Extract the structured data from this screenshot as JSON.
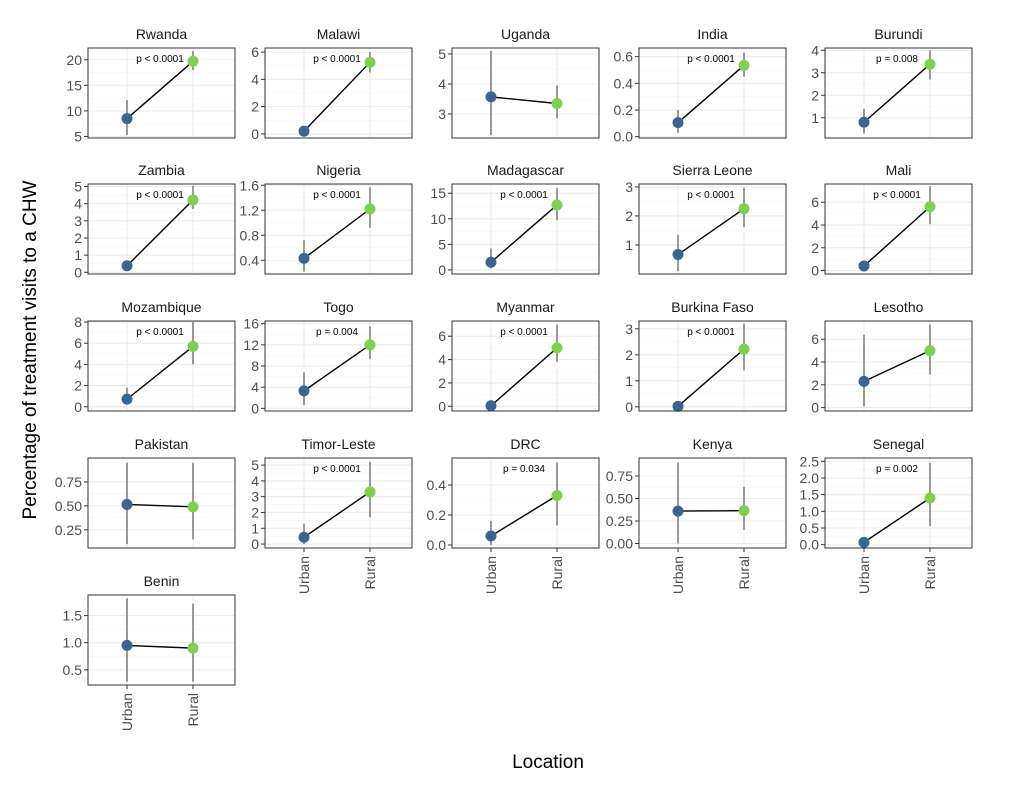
{
  "figure": {
    "ylabel": "Percentage of treatment visits to a CHW",
    "xlabel": "Location",
    "colors": {
      "urban": "#3a6593",
      "rural": "#7ed04f",
      "line": "#000000",
      "errorbar": "#999999",
      "grid": "#ebebeb",
      "border": "#333333"
    }
  },
  "chart_data": {
    "type": "line",
    "categories": [
      "Urban",
      "Rural"
    ],
    "facets": [
      {
        "country": "Rwanda",
        "urban": 8.5,
        "rural": 19.7,
        "urban_ci": [
          5.3,
          12.1
        ],
        "rural_ci": [
          18.0,
          21.7
        ],
        "p": "p < 0.0001",
        "ylim": [
          4.7,
          22.3
        ],
        "yticks": [
          5,
          10,
          15,
          20
        ]
      },
      {
        "country": "Malawi",
        "urban": 0.2,
        "rural": 5.25,
        "urban_ci": [
          0.0,
          0.4
        ],
        "rural_ci": [
          4.5,
          6.0
        ],
        "p": "p < 0.0001",
        "ylim": [
          -0.3,
          6.3
        ],
        "yticks": [
          0,
          2,
          4,
          6
        ]
      },
      {
        "country": "Uganda",
        "urban": 3.57,
        "rural": 3.35,
        "urban_ci": [
          2.3,
          5.1
        ],
        "rural_ci": [
          2.85,
          3.95
        ],
        "p": "",
        "ylim": [
          2.2,
          5.2
        ],
        "yticks": [
          3,
          4,
          5
        ]
      },
      {
        "country": "India",
        "urban": 0.105,
        "rural": 0.535,
        "urban_ci": [
          0.03,
          0.2
        ],
        "rural_ci": [
          0.45,
          0.63
        ],
        "p": "p < 0.0001",
        "ylim": [
          -0.01,
          0.665
        ],
        "yticks": [
          0.0,
          0.2,
          0.4,
          0.6
        ]
      },
      {
        "country": "Burundi",
        "urban": 0.8,
        "rural": 3.38,
        "urban_ci": [
          0.3,
          1.4
        ],
        "rural_ci": [
          2.7,
          4.0
        ],
        "p": "p = 0.008",
        "ylim": [
          0.1,
          4.1
        ],
        "yticks": [
          1,
          2,
          3,
          4
        ]
      },
      {
        "country": "Zambia",
        "urban": 0.38,
        "rural": 4.22,
        "urban_ci": [
          0.15,
          0.6
        ],
        "rural_ci": [
          3.7,
          5.05
        ],
        "p": "p < 0.0001",
        "ylim": [
          -0.1,
          5.15
        ],
        "yticks": [
          0,
          1,
          2,
          3,
          4,
          5
        ]
      },
      {
        "country": "Nigeria",
        "urban": 0.43,
        "rural": 1.22,
        "urban_ci": [
          0.22,
          0.72
        ],
        "rural_ci": [
          0.92,
          1.57
        ],
        "p": "p < 0.0001",
        "ylim": [
          0.18,
          1.62
        ],
        "yticks": [
          0.4,
          0.8,
          1.2,
          1.6
        ]
      },
      {
        "country": "Madagascar",
        "urban": 1.5,
        "rural": 12.7,
        "urban_ci": [
          0.3,
          4.2
        ],
        "rural_ci": [
          9.7,
          16.0
        ],
        "p": "p < 0.0001",
        "ylim": [
          -0.8,
          16.8
        ],
        "yticks": [
          0,
          5,
          10,
          15
        ]
      },
      {
        "country": "Sierra Leone",
        "urban": 0.67,
        "rural": 2.25,
        "urban_ci": [
          0.1,
          1.35
        ],
        "rural_ci": [
          1.62,
          2.98
        ],
        "p": "p < 0.0001",
        "ylim": [
          0.0,
          3.1
        ],
        "yticks": [
          1,
          2,
          3
        ]
      },
      {
        "country": "Mali",
        "urban": 0.4,
        "rural": 5.6,
        "urban_ci": [
          0.0,
          0.9
        ],
        "rural_ci": [
          4.1,
          7.4
        ],
        "p": "p < 0.0001",
        "ylim": [
          -0.3,
          7.6
        ],
        "yticks": [
          0,
          2,
          4,
          6
        ]
      },
      {
        "country": "Mozambique",
        "urban": 0.72,
        "rural": 5.7,
        "urban_ci": [
          0.2,
          1.8
        ],
        "rural_ci": [
          4.0,
          8.0
        ],
        "p": "p < 0.0001",
        "ylim": [
          -0.4,
          8.1
        ],
        "yticks": [
          0,
          2,
          4,
          6,
          8
        ]
      },
      {
        "country": "Togo",
        "urban": 3.3,
        "rural": 12.0,
        "urban_ci": [
          0.6,
          6.8
        ],
        "rural_ci": [
          9.3,
          15.5
        ],
        "p": "p = 0.004",
        "ylim": [
          -0.5,
          16.5
        ],
        "yticks": [
          0,
          4,
          8,
          12,
          16
        ]
      },
      {
        "country": "Myanmar",
        "urban": 0.05,
        "rural": 5.0,
        "urban_ci": [
          0.0,
          0.2
        ],
        "rural_ci": [
          3.8,
          7.0
        ],
        "p": "p < 0.0001",
        "ylim": [
          -0.4,
          7.3
        ],
        "yticks": [
          0,
          2,
          4,
          6
        ]
      },
      {
        "country": "Burkina Faso",
        "urban": 0.02,
        "rural": 2.22,
        "urban_ci": [
          0.0,
          0.1
        ],
        "rural_ci": [
          1.4,
          3.2
        ],
        "p": "p < 0.0001",
        "ylim": [
          -0.16,
          3.3
        ],
        "yticks": [
          0,
          1,
          2,
          3
        ]
      },
      {
        "country": "Lesotho",
        "urban": 2.3,
        "rural": 5.0,
        "urban_ci": [
          0.1,
          6.4
        ],
        "rural_ci": [
          2.9,
          7.3
        ],
        "p": "",
        "ylim": [
          -0.3,
          7.6
        ],
        "yticks": [
          0,
          2,
          4,
          6
        ]
      },
      {
        "country": "Pakistan",
        "urban": 0.515,
        "rural": 0.49,
        "urban_ci": [
          0.1,
          0.95
        ],
        "rural_ci": [
          0.15,
          0.95
        ],
        "p": "",
        "ylim": [
          0.06,
          1.0
        ],
        "yticks": [
          0.25,
          0.5,
          0.75
        ]
      },
      {
        "country": "Timor-Leste",
        "urban": 0.43,
        "rural": 3.3,
        "urban_ci": [
          0.0,
          1.3
        ],
        "rural_ci": [
          1.7,
          5.2
        ],
        "p": "p < 0.0001",
        "ylim": [
          -0.25,
          5.45
        ],
        "yticks": [
          0,
          1,
          2,
          3,
          4,
          5
        ]
      },
      {
        "country": "DRC",
        "urban": 0.06,
        "rural": 0.33,
        "urban_ci": [
          0.0,
          0.16
        ],
        "rural_ci": [
          0.13,
          0.55
        ],
        "p": "p = 0.034",
        "ylim": [
          -0.02,
          0.58
        ],
        "yticks": [
          0.0,
          0.2,
          0.4
        ]
      },
      {
        "country": "Kenya",
        "urban": 0.36,
        "rural": 0.365,
        "urban_ci": [
          0.0,
          0.9
        ],
        "rural_ci": [
          0.15,
          0.63
        ],
        "p": "",
        "ylim": [
          -0.05,
          0.95
        ],
        "yticks": [
          0.0,
          0.25,
          0.5,
          0.75
        ]
      },
      {
        "country": "Senegal",
        "urban": 0.07,
        "rural": 1.4,
        "urban_ci": [
          0.0,
          0.12
        ],
        "rural_ci": [
          0.55,
          2.45
        ],
        "p": "p = 0.002",
        "ylim": [
          -0.1,
          2.6
        ],
        "yticks": [
          0.0,
          0.5,
          1.0,
          1.5,
          2.0,
          2.5
        ]
      },
      {
        "country": "Benin",
        "urban": 0.95,
        "rural": 0.9,
        "urban_ci": [
          0.28,
          1.82
        ],
        "rural_ci": [
          0.28,
          1.72
        ],
        "p": "",
        "ylim": [
          0.22,
          1.88
        ],
        "yticks": [
          0.5,
          1.0,
          1.5
        ]
      }
    ],
    "xtick_panels": [
      "Timor-Leste",
      "DRC",
      "Kenya",
      "Senegal",
      "Benin"
    ]
  }
}
